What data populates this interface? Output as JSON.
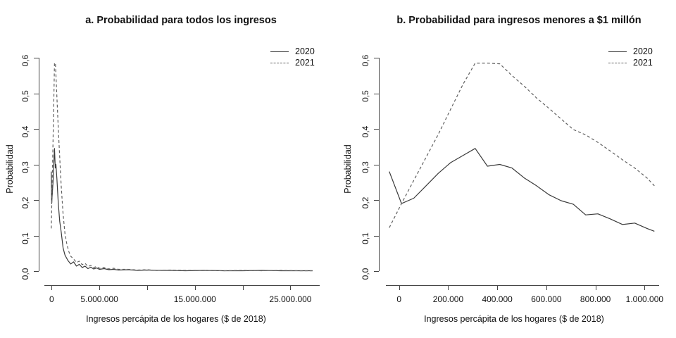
{
  "colors": {
    "background": "#ffffff",
    "axis": "#454545",
    "series_2020": "#3a3a3a",
    "series_2021": "#616161",
    "text": "#111111"
  },
  "chart_data": [
    {
      "type": "line",
      "title": "a. Probabilidad para todos los ingresos",
      "xlabel": "Ingresos percápita de los hogares ($ de 2018)",
      "ylabel": "Probabilidad",
      "xlim": [
        -700000,
        27500000
      ],
      "ylim": [
        0,
        0.6
      ],
      "grid": false,
      "legend_position": "topright",
      "x_ticks": [
        {
          "value": 0,
          "label": "0"
        },
        {
          "value": 5000000,
          "label": "5.000.000"
        },
        {
          "value": 10000000,
          "label": ""
        },
        {
          "value": 15000000,
          "label": "15.000.000"
        },
        {
          "value": 20000000,
          "label": ""
        },
        {
          "value": 25000000,
          "label": "25.000.000"
        }
      ],
      "y_ticks": [
        {
          "value": 0.0,
          "label": "0,0"
        },
        {
          "value": 0.1,
          "label": "0,1"
        },
        {
          "value": 0.2,
          "label": "0,2"
        },
        {
          "value": 0.3,
          "label": "0,3"
        },
        {
          "value": 0.4,
          "label": "0,4"
        },
        {
          "value": 0.5,
          "label": "0,5"
        },
        {
          "value": 0.6,
          "label": "0,6"
        }
      ],
      "series": [
        {
          "name": "2020",
          "line_style": "solid",
          "points": [
            [
              -40000,
              0.28
            ],
            [
              10000,
              0.19
            ],
            [
              150000,
              0.25
            ],
            [
              300000,
              0.345
            ],
            [
              380000,
              0.29
            ],
            [
              450000,
              0.3
            ],
            [
              550000,
              0.26
            ],
            [
              700000,
              0.19
            ],
            [
              850000,
              0.14
            ],
            [
              1000000,
              0.11
            ],
            [
              1200000,
              0.065
            ],
            [
              1400000,
              0.045
            ],
            [
              1700000,
              0.03
            ],
            [
              2000000,
              0.02
            ],
            [
              2300000,
              0.026
            ],
            [
              2600000,
              0.014
            ],
            [
              2900000,
              0.019
            ],
            [
              3200000,
              0.01
            ],
            [
              3500000,
              0.014
            ],
            [
              3800000,
              0.007
            ],
            [
              4100000,
              0.011
            ],
            [
              4400000,
              0.006
            ],
            [
              4700000,
              0.009
            ],
            [
              5000000,
              0.005
            ],
            [
              5500000,
              0.007
            ],
            [
              6000000,
              0.004
            ],
            [
              6500000,
              0.005
            ],
            [
              7000000,
              0.003
            ],
            [
              8000000,
              0.004
            ],
            [
              9000000,
              0.002
            ],
            [
              10000000,
              0.003
            ],
            [
              11000000,
              0.002
            ],
            [
              12500000,
              0.002
            ],
            [
              14000000,
              0.001
            ],
            [
              16000000,
              0.002
            ],
            [
              18000000,
              0.001
            ],
            [
              20000000,
              0.001
            ],
            [
              22000000,
              0.002
            ],
            [
              24000000,
              0.001
            ],
            [
              26000000,
              0.001
            ],
            [
              27300000,
              0.001
            ]
          ]
        },
        {
          "name": "2021",
          "line_style": "dashed",
          "points": [
            [
              -40000,
              0.12
            ],
            [
              100000,
              0.3
            ],
            [
              300000,
              0.585
            ],
            [
              400000,
              0.585
            ],
            [
              550000,
              0.49
            ],
            [
              700000,
              0.4
            ],
            [
              850000,
              0.32
            ],
            [
              1000000,
              0.24
            ],
            [
              1200000,
              0.16
            ],
            [
              1400000,
              0.105
            ],
            [
              1600000,
              0.075
            ],
            [
              1800000,
              0.055
            ],
            [
              2000000,
              0.042
            ],
            [
              2300000,
              0.034
            ],
            [
              2600000,
              0.024
            ],
            [
              2900000,
              0.028
            ],
            [
              3200000,
              0.018
            ],
            [
              3500000,
              0.022
            ],
            [
              3800000,
              0.013
            ],
            [
              4100000,
              0.016
            ],
            [
              4400000,
              0.01
            ],
            [
              4700000,
              0.013
            ],
            [
              5000000,
              0.008
            ],
            [
              5500000,
              0.01
            ],
            [
              6000000,
              0.006
            ],
            [
              6500000,
              0.008
            ],
            [
              7000000,
              0.005
            ],
            [
              8000000,
              0.005
            ],
            [
              9000000,
              0.003
            ],
            [
              10000000,
              0.004
            ],
            [
              11000000,
              0.002
            ],
            [
              12500000,
              0.003
            ],
            [
              14000000,
              0.002
            ],
            [
              16000000,
              0.002
            ],
            [
              18000000,
              0.001
            ],
            [
              20000000,
              0.002
            ],
            [
              22000000,
              0.001
            ],
            [
              24000000,
              0.002
            ],
            [
              26000000,
              0.001
            ],
            [
              27400000,
              0.001
            ]
          ]
        }
      ]
    },
    {
      "type": "line",
      "title": "b. Probabilidad para ingresos menores a $1 millón",
      "xlabel": "Ingresos percápita de los hogares ($ de 2018)",
      "ylabel": "Probabilidad",
      "xlim": [
        -55000,
        1060000
      ],
      "ylim": [
        0,
        0.6
      ],
      "grid": false,
      "legend_position": "topright",
      "x_ticks": [
        {
          "value": 0,
          "label": "0"
        },
        {
          "value": 200000,
          "label": "200.000"
        },
        {
          "value": 400000,
          "label": "400.000"
        },
        {
          "value": 600000,
          "label": "600.000"
        },
        {
          "value": 800000,
          "label": "800.000"
        },
        {
          "value": 1000000,
          "label": "1.000.000"
        }
      ],
      "y_ticks": [
        {
          "value": 0.0,
          "label": "0,0"
        },
        {
          "value": 0.1,
          "label": "0,1"
        },
        {
          "value": 0.2,
          "label": "0,2"
        },
        {
          "value": 0.3,
          "label": "0,3"
        },
        {
          "value": 0.4,
          "label": "0,4"
        },
        {
          "value": 0.5,
          "label": "0,5"
        },
        {
          "value": 0.6,
          "label": "0,6"
        }
      ],
      "series": [
        {
          "name": "2020",
          "line_style": "solid",
          "points": [
            [
              -40000,
              0.28
            ],
            [
              10000,
              0.19
            ],
            [
              60000,
              0.205
            ],
            [
              110000,
              0.24
            ],
            [
              160000,
              0.275
            ],
            [
              210000,
              0.305
            ],
            [
              260000,
              0.325
            ],
            [
              310000,
              0.345
            ],
            [
              360000,
              0.295
            ],
            [
              410000,
              0.3
            ],
            [
              460000,
              0.29
            ],
            [
              510000,
              0.262
            ],
            [
              560000,
              0.24
            ],
            [
              610000,
              0.215
            ],
            [
              660000,
              0.198
            ],
            [
              710000,
              0.188
            ],
            [
              760000,
              0.158
            ],
            [
              810000,
              0.161
            ],
            [
              860000,
              0.147
            ],
            [
              910000,
              0.131
            ],
            [
              960000,
              0.135
            ],
            [
              1010000,
              0.12
            ],
            [
              1040000,
              0.112
            ]
          ]
        },
        {
          "name": "2021",
          "line_style": "dashed",
          "points": [
            [
              -40000,
              0.122
            ],
            [
              10000,
              0.19
            ],
            [
              60000,
              0.255
            ],
            [
              110000,
              0.32
            ],
            [
              160000,
              0.385
            ],
            [
              210000,
              0.455
            ],
            [
              260000,
              0.525
            ],
            [
              310000,
              0.585
            ],
            [
              360000,
              0.585
            ],
            [
              410000,
              0.583
            ],
            [
              460000,
              0.55
            ],
            [
              510000,
              0.52
            ],
            [
              560000,
              0.487
            ],
            [
              610000,
              0.458
            ],
            [
              660000,
              0.428
            ],
            [
              710000,
              0.398
            ],
            [
              760000,
              0.383
            ],
            [
              810000,
              0.362
            ],
            [
              860000,
              0.338
            ],
            [
              910000,
              0.313
            ],
            [
              960000,
              0.29
            ],
            [
              1010000,
              0.262
            ],
            [
              1040000,
              0.24
            ]
          ]
        }
      ]
    }
  ]
}
